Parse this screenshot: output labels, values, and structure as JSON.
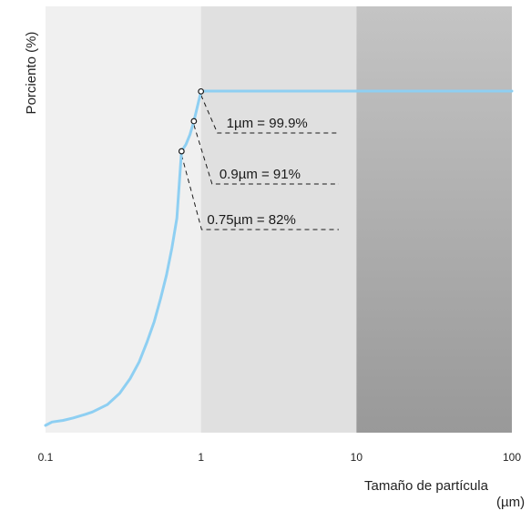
{
  "chart_data": {
    "type": "line",
    "title": "",
    "ylabel": "Porciento (%)",
    "xlabel_line1": "Tamaño de partícula",
    "xlabel_line2": "(µm)",
    "x_scale": "log",
    "xlim": [
      0.1,
      100
    ],
    "ylim": [
      0,
      100
    ],
    "x_ticks": [
      "0.1",
      "1",
      "10",
      "100"
    ],
    "grid": false,
    "legend": "none",
    "background_bands": [
      {
        "from": 0.1,
        "to": 1,
        "color": "#f0f0f0"
      },
      {
        "from": 1,
        "to": 10,
        "color": "#e0e0e0"
      },
      {
        "from": 10,
        "to": 100,
        "style": "gradient",
        "color_top": "#c4c4c4",
        "color_bottom": "#999999"
      }
    ],
    "series": [
      {
        "color": "#8ecff2",
        "x": [
          0.1,
          0.11,
          0.13,
          0.15,
          0.18,
          0.2,
          0.25,
          0.3,
          0.35,
          0.4,
          0.45,
          0.5,
          0.55,
          0.6,
          0.65,
          0.7,
          0.75,
          0.8,
          0.85,
          0.9,
          1.0,
          1.06,
          1.2,
          2,
          5,
          10,
          30,
          100
        ],
        "y": [
          0,
          1,
          1.5,
          2.2,
          3.3,
          4,
          6.2,
          9.6,
          14,
          19,
          25,
          31,
          38,
          45,
          53,
          62,
          82,
          84,
          87,
          91,
          99.9,
          100,
          100,
          100,
          100,
          100,
          100,
          100
        ]
      }
    ],
    "annotations": [
      {
        "x": 1.0,
        "y": 99.9,
        "text": "1µm = 99.9%"
      },
      {
        "x": 0.9,
        "y": 91,
        "text": "0.9µm = 91%"
      },
      {
        "x": 0.75,
        "y": 82,
        "text": "0.75µm = 82%"
      }
    ]
  }
}
